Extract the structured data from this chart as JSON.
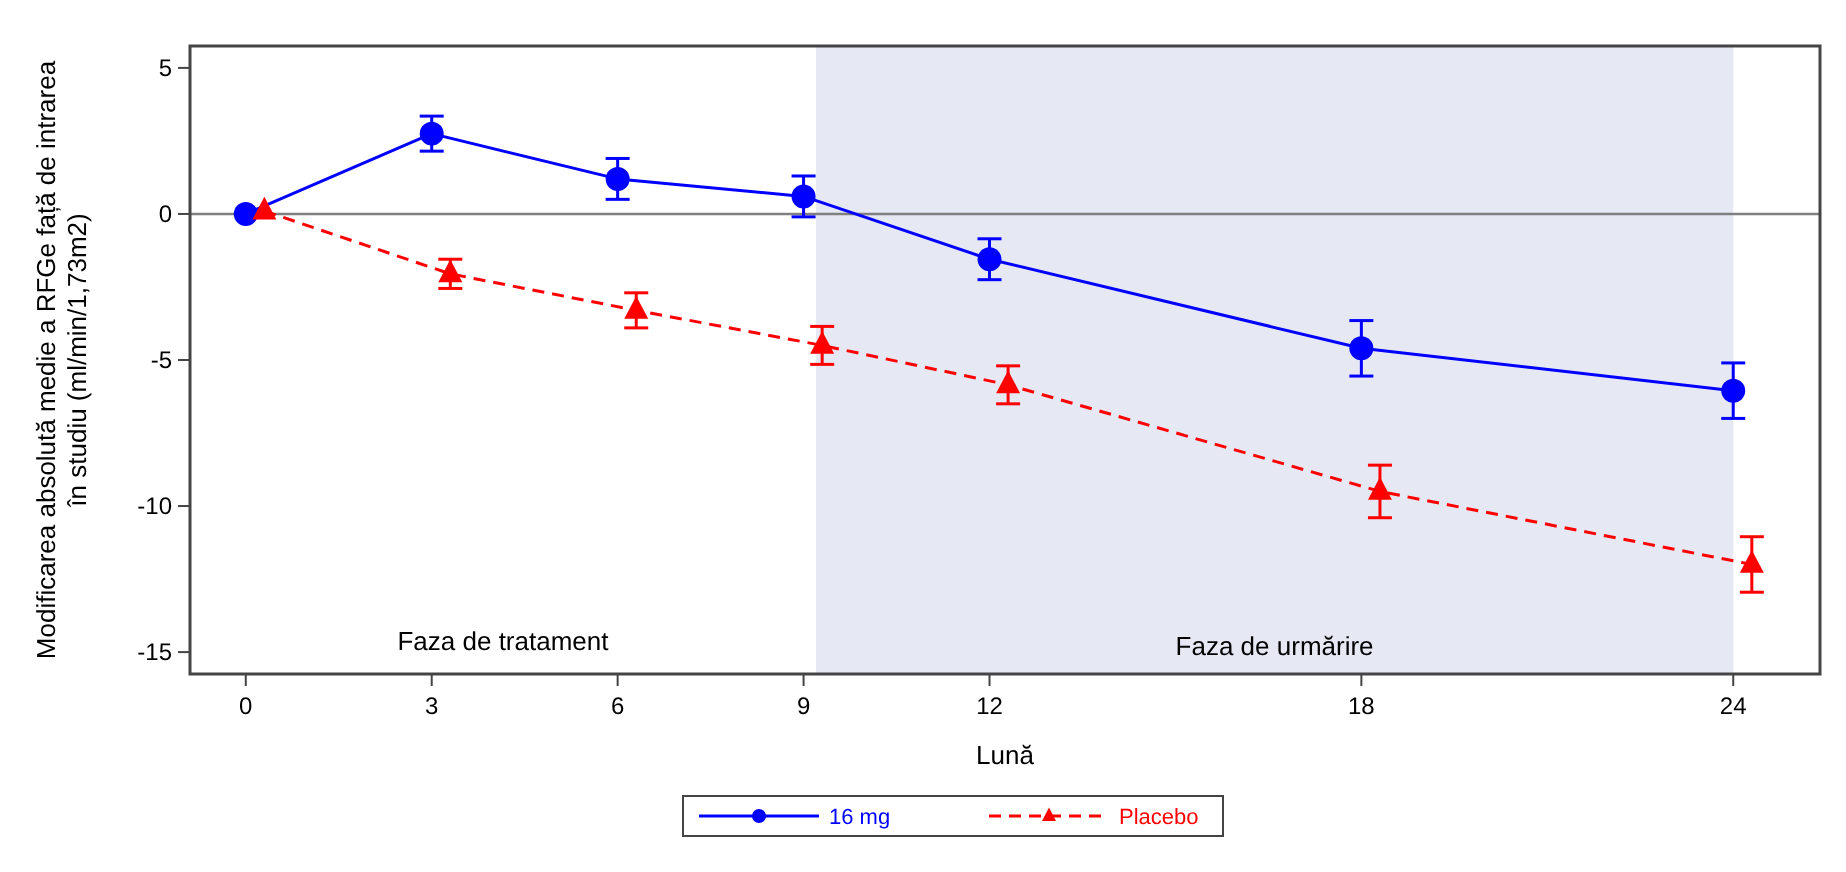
{
  "chart_data": {
    "type": "line",
    "xlabel": "Lună",
    "ylabel": "Modificarea absolută medie a RFGe față de intrarea în studiu (ml/min/1,73m2)",
    "xlim": [
      -0.9,
      25.4
    ],
    "xticks": [
      0,
      3,
      6,
      9,
      12,
      18,
      24
    ],
    "ylim": [
      -15.75,
      5.75
    ],
    "yticks": [
      -15,
      -10,
      -5,
      0,
      5
    ],
    "grid": false,
    "legend": "bottom",
    "series": [
      {
        "name": "16 mg",
        "color": "#0000ff",
        "marker": "circle",
        "line_style": "solid",
        "x": [
          0,
          3,
          6,
          9,
          12,
          18,
          24
        ],
        "values": [
          0,
          2.75,
          1.2,
          0.6,
          -1.55,
          -4.6,
          -6.05
        ],
        "errors": [
          null,
          0.6,
          0.7,
          0.7,
          0.7,
          0.95,
          0.95
        ]
      },
      {
        "name": "Placebo",
        "color": "#ff0000",
        "marker": "triangle",
        "line_style": "dashed",
        "x": [
          0.3,
          3.3,
          6.3,
          9.3,
          12.3,
          18.3,
          24.3
        ],
        "values": [
          0.1,
          -2.05,
          -3.3,
          -4.5,
          -5.85,
          -9.5,
          -12.0
        ],
        "errors": [
          null,
          0.5,
          0.6,
          0.65,
          0.65,
          0.9,
          0.95
        ]
      }
    ],
    "ref_lines": [
      {
        "axis": "y",
        "value": 0,
        "color": "#808080"
      }
    ],
    "bands": [
      {
        "axis": "x",
        "from": 9.2,
        "to": 24,
        "label": "Faza de urmărire",
        "color": "#e6e9f4"
      }
    ],
    "annotations": [
      "Faza de tratament"
    ]
  }
}
